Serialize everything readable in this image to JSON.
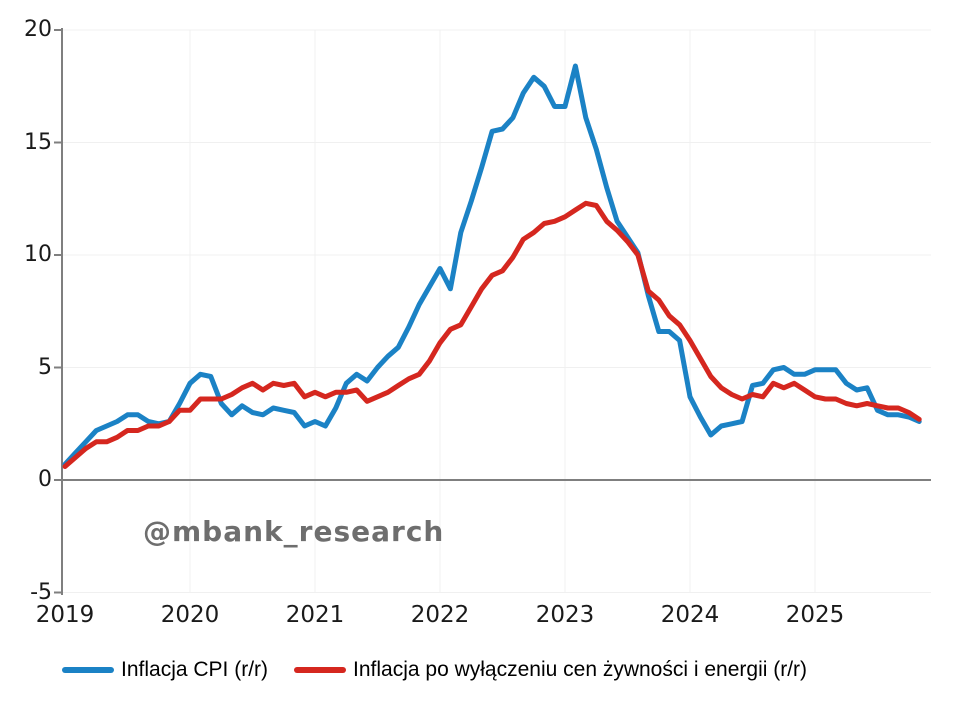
{
  "watermark": {
    "text": "@mbank_research",
    "color": "#6e6e6e"
  },
  "chart_data": {
    "type": "line",
    "title": "",
    "x_unit": "month",
    "x_start": "2019-01",
    "x_end": "2025-11",
    "x_tick_labels": [
      "2019",
      "2020",
      "2021",
      "2022",
      "2023",
      "2024",
      "2025"
    ],
    "y_ticks": [
      20,
      15,
      10,
      5,
      0,
      -5
    ],
    "ylim": [
      -5,
      20
    ],
    "grid": true,
    "legend_position": "bottom",
    "axis_color": "#7f7f7f",
    "gridline_color": "#f0f0f0",
    "series": [
      {
        "name": "Inflacja CPI (r/r)",
        "color": "#1b82c5",
        "values": [
          0.7,
          1.2,
          1.7,
          2.2,
          2.4,
          2.6,
          2.9,
          2.9,
          2.6,
          2.5,
          2.6,
          3.4,
          4.3,
          4.7,
          4.6,
          3.4,
          2.9,
          3.3,
          3.0,
          2.9,
          3.2,
          3.1,
          3.0,
          2.4,
          2.6,
          2.4,
          3.2,
          4.3,
          4.7,
          4.4,
          5.0,
          5.5,
          5.9,
          6.8,
          7.8,
          8.6,
          9.4,
          8.5,
          11.0,
          12.4,
          13.9,
          15.5,
          15.6,
          16.1,
          17.2,
          17.9,
          17.5,
          16.6,
          16.6,
          18.4,
          16.1,
          14.7,
          13.0,
          11.5,
          10.8,
          10.1,
          8.2,
          6.6,
          6.6,
          6.2,
          3.7,
          2.8,
          2.0,
          2.4,
          2.5,
          2.6,
          4.2,
          4.3,
          4.9,
          5.0,
          4.7,
          4.7,
          4.9,
          4.9,
          4.9,
          4.3,
          4.0,
          4.1,
          3.1,
          2.9,
          2.9,
          2.8,
          2.6
        ]
      },
      {
        "name": "Inflacja po wyłączeniu cen żywności i energii (r/r)",
        "color": "#d5271f",
        "values": [
          0.6,
          1.0,
          1.4,
          1.7,
          1.7,
          1.9,
          2.2,
          2.2,
          2.4,
          2.4,
          2.6,
          3.1,
          3.1,
          3.6,
          3.6,
          3.6,
          3.8,
          4.1,
          4.3,
          4.0,
          4.3,
          4.2,
          4.3,
          3.7,
          3.9,
          3.7,
          3.9,
          3.9,
          4.0,
          3.5,
          3.7,
          3.9,
          4.2,
          4.5,
          4.7,
          5.3,
          6.1,
          6.7,
          6.9,
          7.7,
          8.5,
          9.1,
          9.3,
          9.9,
          10.7,
          11.0,
          11.4,
          11.5,
          11.7,
          12.0,
          12.3,
          12.2,
          11.5,
          11.1,
          10.6,
          10.0,
          8.4,
          8.0,
          7.3,
          6.9,
          6.2,
          5.4,
          4.6,
          4.1,
          3.8,
          3.6,
          3.8,
          3.7,
          4.3,
          4.1,
          4.3,
          4.0,
          3.7,
          3.6,
          3.6,
          3.4,
          3.3,
          3.4,
          3.3,
          3.2,
          3.2,
          3.0,
          2.7
        ]
      }
    ]
  }
}
